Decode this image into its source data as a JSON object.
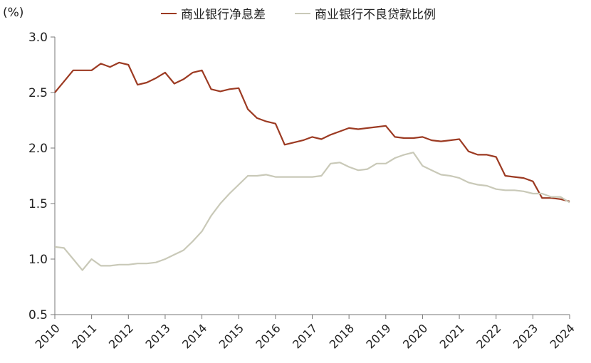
{
  "chart_data": {
    "type": "line",
    "unit_label": "(%)",
    "ylim": [
      0.5,
      3.0
    ],
    "yticks": [
      "0.5",
      "1.0",
      "1.5",
      "2.0",
      "2.5",
      "3.0"
    ],
    "xlim": [
      2010.0,
      2024.0
    ],
    "xticks": [
      "2010",
      "2011",
      "2012",
      "2013",
      "2014",
      "2015",
      "2016",
      "2017",
      "2018",
      "2019",
      "2020",
      "2021",
      "2022",
      "2023",
      "2024"
    ],
    "series": [
      {
        "name": "商业银行净息差",
        "color": "#9c3a22",
        "points": [
          [
            2010.0,
            2.5
          ],
          [
            2010.25,
            2.6
          ],
          [
            2010.5,
            2.7
          ],
          [
            2010.75,
            2.7
          ],
          [
            2011.0,
            2.7
          ],
          [
            2011.25,
            2.76
          ],
          [
            2011.5,
            2.73
          ],
          [
            2011.75,
            2.77
          ],
          [
            2012.0,
            2.75
          ],
          [
            2012.25,
            2.57
          ],
          [
            2012.5,
            2.59
          ],
          [
            2012.75,
            2.63
          ],
          [
            2013.0,
            2.68
          ],
          [
            2013.25,
            2.58
          ],
          [
            2013.5,
            2.62
          ],
          [
            2013.75,
            2.68
          ],
          [
            2014.0,
            2.7
          ],
          [
            2014.25,
            2.53
          ],
          [
            2014.5,
            2.51
          ],
          [
            2014.75,
            2.53
          ],
          [
            2015.0,
            2.54
          ],
          [
            2015.25,
            2.35
          ],
          [
            2015.5,
            2.27
          ],
          [
            2015.75,
            2.24
          ],
          [
            2016.0,
            2.22
          ],
          [
            2016.25,
            2.03
          ],
          [
            2016.5,
            2.05
          ],
          [
            2016.75,
            2.07
          ],
          [
            2017.0,
            2.1
          ],
          [
            2017.25,
            2.08
          ],
          [
            2017.5,
            2.12
          ],
          [
            2017.75,
            2.15
          ],
          [
            2018.0,
            2.18
          ],
          [
            2018.25,
            2.17
          ],
          [
            2018.5,
            2.18
          ],
          [
            2018.75,
            2.19
          ],
          [
            2019.0,
            2.2
          ],
          [
            2019.25,
            2.1
          ],
          [
            2019.5,
            2.09
          ],
          [
            2019.75,
            2.09
          ],
          [
            2020.0,
            2.1
          ],
          [
            2020.25,
            2.07
          ],
          [
            2020.5,
            2.06
          ],
          [
            2020.75,
            2.07
          ],
          [
            2021.0,
            2.08
          ],
          [
            2021.25,
            1.97
          ],
          [
            2021.5,
            1.94
          ],
          [
            2021.75,
            1.94
          ],
          [
            2022.0,
            1.92
          ],
          [
            2022.25,
            1.75
          ],
          [
            2022.5,
            1.74
          ],
          [
            2022.75,
            1.73
          ],
          [
            2023.0,
            1.7
          ],
          [
            2023.25,
            1.55
          ],
          [
            2023.5,
            1.55
          ],
          [
            2023.75,
            1.54
          ],
          [
            2024.0,
            1.52
          ]
        ]
      },
      {
        "name": "商业银行不良贷款比例",
        "color": "#c9c9b8",
        "points": [
          [
            2010.0,
            1.11
          ],
          [
            2010.25,
            1.1
          ],
          [
            2010.5,
            1.0
          ],
          [
            2010.75,
            0.9
          ],
          [
            2011.0,
            1.0
          ],
          [
            2011.25,
            0.94
          ],
          [
            2011.5,
            0.94
          ],
          [
            2011.75,
            0.95
          ],
          [
            2012.0,
            0.95
          ],
          [
            2012.25,
            0.96
          ],
          [
            2012.5,
            0.96
          ],
          [
            2012.75,
            0.97
          ],
          [
            2013.0,
            1.0
          ],
          [
            2013.25,
            1.04
          ],
          [
            2013.5,
            1.08
          ],
          [
            2013.75,
            1.16
          ],
          [
            2014.0,
            1.25
          ],
          [
            2014.25,
            1.39
          ],
          [
            2014.5,
            1.5
          ],
          [
            2014.75,
            1.59
          ],
          [
            2015.0,
            1.67
          ],
          [
            2015.25,
            1.75
          ],
          [
            2015.5,
            1.75
          ],
          [
            2015.75,
            1.76
          ],
          [
            2016.0,
            1.74
          ],
          [
            2016.25,
            1.74
          ],
          [
            2016.5,
            1.74
          ],
          [
            2016.75,
            1.74
          ],
          [
            2017.0,
            1.74
          ],
          [
            2017.25,
            1.75
          ],
          [
            2017.5,
            1.86
          ],
          [
            2017.75,
            1.87
          ],
          [
            2018.0,
            1.83
          ],
          [
            2018.25,
            1.8
          ],
          [
            2018.5,
            1.81
          ],
          [
            2018.75,
            1.86
          ],
          [
            2019.0,
            1.86
          ],
          [
            2019.25,
            1.91
          ],
          [
            2019.5,
            1.94
          ],
          [
            2019.75,
            1.96
          ],
          [
            2020.0,
            1.84
          ],
          [
            2020.25,
            1.8
          ],
          [
            2020.5,
            1.76
          ],
          [
            2020.75,
            1.75
          ],
          [
            2021.0,
            1.73
          ],
          [
            2021.25,
            1.69
          ],
          [
            2021.5,
            1.67
          ],
          [
            2021.75,
            1.66
          ],
          [
            2022.0,
            1.63
          ],
          [
            2022.25,
            1.62
          ],
          [
            2022.5,
            1.62
          ],
          [
            2022.75,
            1.61
          ],
          [
            2023.0,
            1.59
          ],
          [
            2023.25,
            1.59
          ],
          [
            2023.5,
            1.56
          ],
          [
            2023.75,
            1.56
          ],
          [
            2024.0,
            1.51
          ]
        ]
      }
    ],
    "legend_position": "top-center",
    "grid": false
  }
}
